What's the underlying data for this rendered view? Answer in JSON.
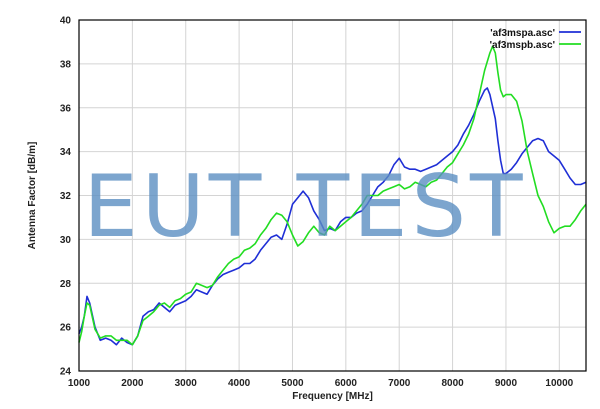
{
  "watermark": "EUT TEST",
  "chart_data": {
    "type": "line",
    "xlabel": "Frequency [MHz]",
    "ylabel": "Antenna Factor [dB/m]",
    "xlim": [
      1000,
      10500
    ],
    "ylim": [
      24,
      40
    ],
    "x_ticks": [
      1000,
      2000,
      3000,
      4000,
      5000,
      6000,
      7000,
      8000,
      9000,
      10000
    ],
    "y_ticks": [
      24,
      26,
      28,
      30,
      32,
      34,
      36,
      38,
      40
    ],
    "grid": true,
    "legend_position": "top-right",
    "series": [
      {
        "name": "'af3mspa.asc'",
        "color": "#1f2fd6",
        "points": [
          [
            1000,
            25.7
          ],
          [
            1050,
            26.0
          ],
          [
            1100,
            26.5
          ],
          [
            1150,
            27.4
          ],
          [
            1200,
            27.1
          ],
          [
            1300,
            26.0
          ],
          [
            1400,
            25.4
          ],
          [
            1500,
            25.5
          ],
          [
            1600,
            25.4
          ],
          [
            1700,
            25.2
          ],
          [
            1800,
            25.5
          ],
          [
            1900,
            25.3
          ],
          [
            2000,
            25.2
          ],
          [
            2100,
            25.6
          ],
          [
            2200,
            26.5
          ],
          [
            2300,
            26.7
          ],
          [
            2400,
            26.8
          ],
          [
            2500,
            27.1
          ],
          [
            2600,
            26.9
          ],
          [
            2700,
            26.7
          ],
          [
            2800,
            27.0
          ],
          [
            2900,
            27.1
          ],
          [
            3000,
            27.2
          ],
          [
            3100,
            27.4
          ],
          [
            3200,
            27.7
          ],
          [
            3300,
            27.6
          ],
          [
            3400,
            27.5
          ],
          [
            3500,
            27.9
          ],
          [
            3600,
            28.2
          ],
          [
            3700,
            28.4
          ],
          [
            3800,
            28.5
          ],
          [
            3900,
            28.6
          ],
          [
            4000,
            28.7
          ],
          [
            4100,
            28.9
          ],
          [
            4200,
            28.9
          ],
          [
            4300,
            29.1
          ],
          [
            4400,
            29.5
          ],
          [
            4500,
            29.8
          ],
          [
            4600,
            30.1
          ],
          [
            4700,
            30.2
          ],
          [
            4800,
            30.0
          ],
          [
            4900,
            30.7
          ],
          [
            5000,
            31.6
          ],
          [
            5100,
            31.9
          ],
          [
            5200,
            32.2
          ],
          [
            5300,
            31.9
          ],
          [
            5400,
            31.3
          ],
          [
            5500,
            30.9
          ],
          [
            5600,
            30.4
          ],
          [
            5700,
            30.5
          ],
          [
            5800,
            30.4
          ],
          [
            5900,
            30.8
          ],
          [
            6000,
            31.0
          ],
          [
            6100,
            31.0
          ],
          [
            6200,
            31.2
          ],
          [
            6300,
            31.3
          ],
          [
            6400,
            31.6
          ],
          [
            6500,
            32.0
          ],
          [
            6600,
            32.4
          ],
          [
            6700,
            32.6
          ],
          [
            6800,
            32.9
          ],
          [
            6900,
            33.4
          ],
          [
            7000,
            33.7
          ],
          [
            7100,
            33.3
          ],
          [
            7200,
            33.2
          ],
          [
            7300,
            33.2
          ],
          [
            7400,
            33.1
          ],
          [
            7500,
            33.2
          ],
          [
            7600,
            33.3
          ],
          [
            7700,
            33.4
          ],
          [
            7800,
            33.6
          ],
          [
            7900,
            33.8
          ],
          [
            8000,
            34.0
          ],
          [
            8100,
            34.3
          ],
          [
            8200,
            34.8
          ],
          [
            8300,
            35.2
          ],
          [
            8400,
            35.7
          ],
          [
            8500,
            36.3
          ],
          [
            8600,
            36.8
          ],
          [
            8650,
            36.9
          ],
          [
            8700,
            36.6
          ],
          [
            8800,
            35.5
          ],
          [
            8850,
            34.5
          ],
          [
            8900,
            33.6
          ],
          [
            8950,
            33.0
          ],
          [
            9000,
            33.0
          ],
          [
            9100,
            33.2
          ],
          [
            9200,
            33.5
          ],
          [
            9300,
            33.9
          ],
          [
            9400,
            34.2
          ],
          [
            9500,
            34.5
          ],
          [
            9600,
            34.6
          ],
          [
            9700,
            34.5
          ],
          [
            9800,
            34.0
          ],
          [
            9900,
            33.8
          ],
          [
            10000,
            33.6
          ],
          [
            10100,
            33.2
          ],
          [
            10200,
            32.8
          ],
          [
            10300,
            32.5
          ],
          [
            10400,
            32.5
          ],
          [
            10500,
            32.6
          ]
        ]
      },
      {
        "name": "'af3mspb.asc'",
        "color": "#22dd22",
        "points": [
          [
            1000,
            25.3
          ],
          [
            1050,
            25.8
          ],
          [
            1100,
            26.5
          ],
          [
            1150,
            27.1
          ],
          [
            1200,
            27.0
          ],
          [
            1300,
            25.9
          ],
          [
            1400,
            25.5
          ],
          [
            1500,
            25.6
          ],
          [
            1600,
            25.6
          ],
          [
            1700,
            25.4
          ],
          [
            1800,
            25.4
          ],
          [
            1900,
            25.4
          ],
          [
            2000,
            25.2
          ],
          [
            2100,
            25.6
          ],
          [
            2200,
            26.3
          ],
          [
            2300,
            26.5
          ],
          [
            2400,
            26.7
          ],
          [
            2500,
            27.0
          ],
          [
            2600,
            27.1
          ],
          [
            2700,
            26.9
          ],
          [
            2800,
            27.2
          ],
          [
            2900,
            27.3
          ],
          [
            3000,
            27.5
          ],
          [
            3100,
            27.6
          ],
          [
            3200,
            28.0
          ],
          [
            3300,
            27.9
          ],
          [
            3400,
            27.8
          ],
          [
            3500,
            27.9
          ],
          [
            3600,
            28.3
          ],
          [
            3700,
            28.6
          ],
          [
            3800,
            28.9
          ],
          [
            3900,
            29.1
          ],
          [
            4000,
            29.2
          ],
          [
            4100,
            29.5
          ],
          [
            4200,
            29.6
          ],
          [
            4300,
            29.8
          ],
          [
            4400,
            30.2
          ],
          [
            4500,
            30.5
          ],
          [
            4600,
            30.9
          ],
          [
            4700,
            31.2
          ],
          [
            4800,
            31.1
          ],
          [
            4900,
            30.8
          ],
          [
            5000,
            30.2
          ],
          [
            5100,
            29.7
          ],
          [
            5200,
            29.9
          ],
          [
            5300,
            30.3
          ],
          [
            5400,
            30.6
          ],
          [
            5500,
            30.3
          ],
          [
            5600,
            30.2
          ],
          [
            5700,
            30.6
          ],
          [
            5800,
            30.4
          ],
          [
            5900,
            30.6
          ],
          [
            6000,
            30.8
          ],
          [
            6100,
            31.0
          ],
          [
            6200,
            31.3
          ],
          [
            6300,
            31.6
          ],
          [
            6400,
            32.0
          ],
          [
            6500,
            32.0
          ],
          [
            6600,
            32.0
          ],
          [
            6700,
            32.2
          ],
          [
            6800,
            32.3
          ],
          [
            6900,
            32.4
          ],
          [
            7000,
            32.5
          ],
          [
            7100,
            32.3
          ],
          [
            7200,
            32.4
          ],
          [
            7300,
            32.6
          ],
          [
            7400,
            32.5
          ],
          [
            7500,
            32.4
          ],
          [
            7600,
            32.6
          ],
          [
            7700,
            32.7
          ],
          [
            7800,
            33.0
          ],
          [
            7900,
            33.3
          ],
          [
            8000,
            33.5
          ],
          [
            8100,
            33.9
          ],
          [
            8200,
            34.3
          ],
          [
            8300,
            34.8
          ],
          [
            8400,
            35.5
          ],
          [
            8500,
            36.6
          ],
          [
            8600,
            37.7
          ],
          [
            8700,
            38.5
          ],
          [
            8750,
            38.8
          ],
          [
            8800,
            38.5
          ],
          [
            8850,
            37.6
          ],
          [
            8900,
            36.8
          ],
          [
            8950,
            36.5
          ],
          [
            9000,
            36.6
          ],
          [
            9100,
            36.6
          ],
          [
            9200,
            36.3
          ],
          [
            9300,
            35.4
          ],
          [
            9400,
            34.0
          ],
          [
            9500,
            33.0
          ],
          [
            9600,
            32.0
          ],
          [
            9700,
            31.5
          ],
          [
            9800,
            30.8
          ],
          [
            9900,
            30.3
          ],
          [
            10000,
            30.5
          ],
          [
            10100,
            30.6
          ],
          [
            10200,
            30.6
          ],
          [
            10300,
            30.9
          ],
          [
            10400,
            31.3
          ],
          [
            10500,
            31.6
          ]
        ]
      }
    ]
  }
}
